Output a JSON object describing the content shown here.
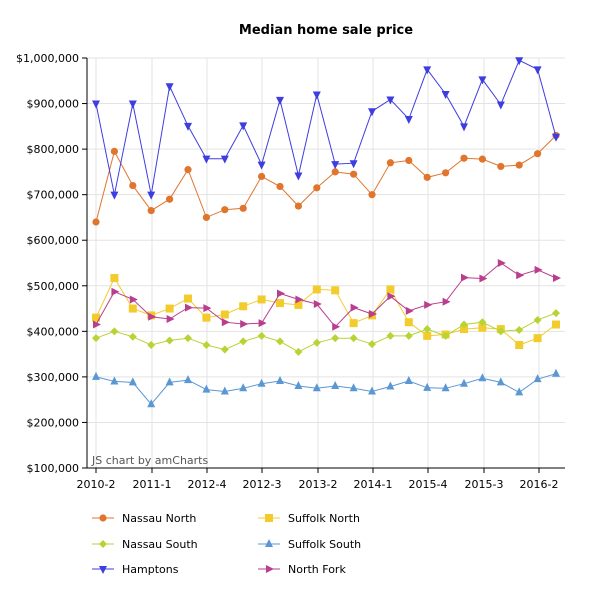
{
  "chart_data": {
    "type": "line",
    "title": "Median home sale price",
    "credit": "JS chart by amCharts",
    "x_tick_labels": [
      "2010-2",
      "2011-1",
      "2012-4",
      "2012-3",
      "2013-2",
      "2014-1",
      "2015-4",
      "2015-3",
      "2016-2"
    ],
    "y_tick_labels": [
      "$100,000",
      "$200,000",
      "$300,000",
      "$400,000",
      "$500,000",
      "$600,000",
      "$700,000",
      "$800,000",
      "$900,000",
      "$1,000,000"
    ],
    "ylim": [
      100000,
      1000000
    ],
    "grid": true,
    "legend_position": "bottom",
    "series": [
      {
        "name": "Nassau North",
        "color": "#e0762d",
        "marker": "circle",
        "values": [
          640000,
          795000,
          720000,
          665000,
          690000,
          755000,
          650000,
          667000,
          670000,
          740000,
          718000,
          675000,
          715000,
          750000,
          745000,
          700000,
          770000,
          775000,
          738000,
          748000,
          780000,
          778000,
          762000,
          765000,
          790000,
          830000
        ]
      },
      {
        "name": "Suffolk North",
        "color": "#f2cc2c",
        "marker": "square",
        "values": [
          430000,
          517000,
          450000,
          435000,
          450000,
          472000,
          430000,
          437000,
          455000,
          470000,
          462000,
          458000,
          492000,
          490000,
          418000,
          435000,
          492000,
          420000,
          390000,
          393000,
          405000,
          408000,
          405000,
          370000,
          385000,
          415000
        ]
      },
      {
        "name": "Nassau South",
        "color": "#b6d434",
        "marker": "diamond",
        "values": [
          385000,
          400000,
          388000,
          370000,
          380000,
          385000,
          370000,
          360000,
          378000,
          390000,
          378000,
          355000,
          375000,
          385000,
          385000,
          372000,
          390000,
          390000,
          405000,
          390000,
          415000,
          420000,
          400000,
          403000,
          425000,
          440000
        ]
      },
      {
        "name": "Suffolk South",
        "color": "#5a97d3",
        "marker": "triangle-up",
        "values": [
          300000,
          290000,
          288000,
          240000,
          288000,
          293000,
          272000,
          268000,
          275000,
          285000,
          291000,
          280000,
          275000,
          280000,
          275000,
          268000,
          279000,
          291000,
          276000,
          275000,
          285000,
          297000,
          288000,
          266000,
          295000,
          307000
        ]
      },
      {
        "name": "Hamptons",
        "color": "#3d3de0",
        "marker": "triangle-down",
        "values": [
          900000,
          700000,
          900000,
          700000,
          938000,
          851000,
          779000,
          779000,
          852000,
          766000,
          908000,
          742000,
          920000,
          767000,
          769000,
          883000,
          909000,
          866000,
          975000,
          921000,
          850000,
          953000,
          898000,
          995000,
          975000,
          827000
        ]
      },
      {
        "name": "North Fork",
        "color": "#b93e8e",
        "marker": "triangle-right",
        "values": [
          415000,
          487000,
          470000,
          432000,
          427000,
          452000,
          451000,
          420000,
          416000,
          418000,
          483000,
          470000,
          460000,
          410000,
          452000,
          438000,
          477000,
          445000,
          458000,
          465000,
          518000,
          516000,
          550000,
          523000,
          535000,
          517000
        ]
      }
    ]
  }
}
